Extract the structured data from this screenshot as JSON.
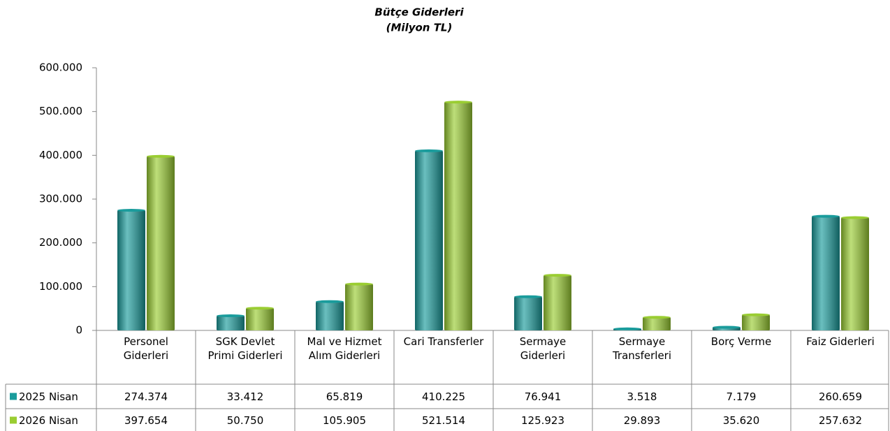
{
  "chart_data": {
    "type": "bar",
    "title": "Bütçe Giderleri",
    "subtitle": "(Milyon TL)",
    "categories": [
      "Personel Giderleri",
      "SGK Devlet Primi Giderleri",
      "Mal ve Hizmet Alım Giderleri",
      "Cari Transferler",
      "Sermaye Giderleri",
      "Sermaye Transferleri",
      "Borç Verme",
      "Faiz Giderleri"
    ],
    "series": [
      {
        "name": "2025 Nisan",
        "color": "#1a9c9c",
        "values": [
          274374,
          33412,
          65819,
          410225,
          76941,
          3518,
          7179,
          260659
        ],
        "value_labels": [
          "274.374",
          "33.412",
          "65.819",
          "410.225",
          "76.941",
          "3.518",
          "7.179",
          "260.659"
        ]
      },
      {
        "name": "2026 Nisan",
        "color": "#9acd32",
        "values": [
          397654,
          50750,
          105905,
          521514,
          125923,
          29893,
          35620,
          257632
        ],
        "value_labels": [
          "397.654",
          "50.750",
          "105.905",
          "521.514",
          "125.923",
          "29.893",
          "35.620",
          "257.632"
        ]
      }
    ],
    "ylim": [
      0,
      600000
    ],
    "yticks": [
      0,
      {
        "value": 100000,
        "label": "100.000"
      },
      {
        "value": 200000,
        "label": "200.000"
      },
      {
        "value": 300000,
        "label": "300.000"
      },
      {
        "value": 400000,
        "label": "400.000"
      },
      {
        "value": 500000,
        "label": "500.000"
      },
      {
        "value": 600000,
        "label": "600.000"
      }
    ],
    "grid": false
  }
}
